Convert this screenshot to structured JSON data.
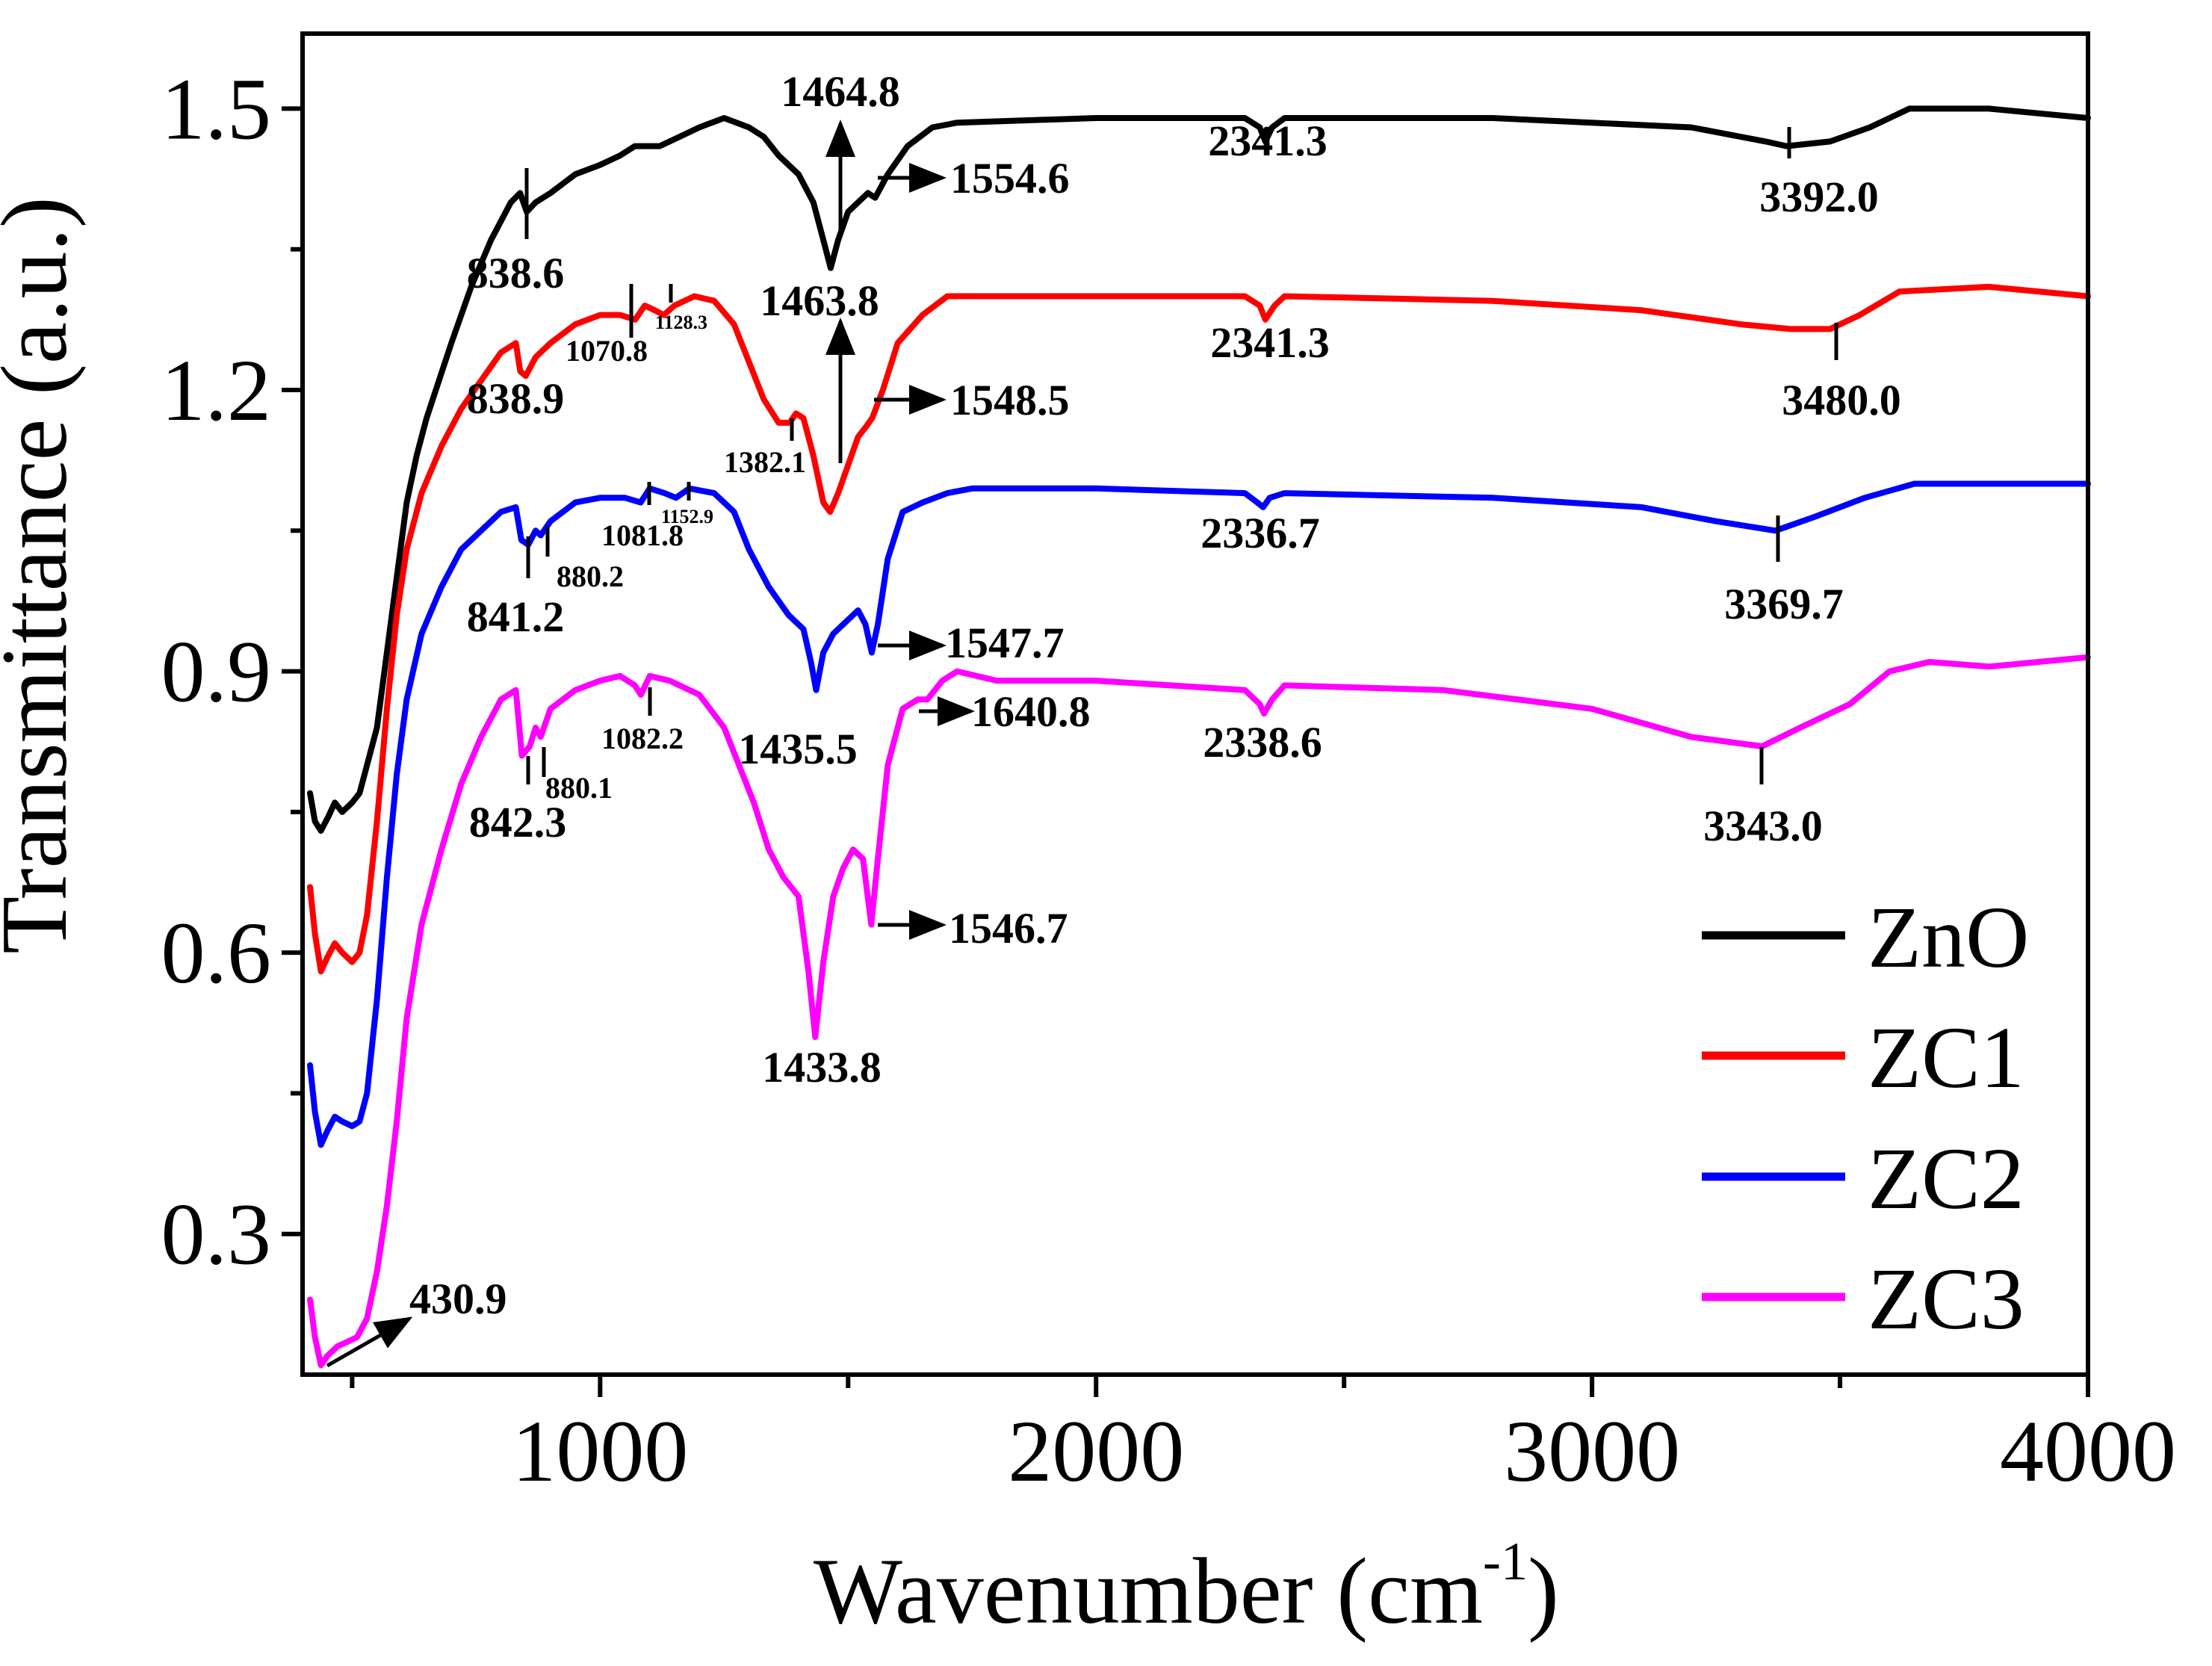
{
  "chart_data": {
    "type": "line",
    "title": "",
    "xlabel_main": "Wavenumber (cm",
    "xlabel_sup": "-1",
    "xlabel_close": ")",
    "ylabel": "Transmittance (a.u.)",
    "xlim": [
      400,
      4000
    ],
    "ylim": [
      0.15,
      1.58
    ],
    "xticks": [
      1000,
      2000,
      3000,
      4000
    ],
    "xtick_labels": [
      "1000",
      "2000",
      "3000",
      "4000"
    ],
    "yticks": [
      0.3,
      0.6,
      0.9,
      1.2,
      1.5
    ],
    "ytick_labels": [
      "0.3",
      "0.6",
      "0.9",
      "1.2",
      "1.5"
    ],
    "legend_position": "bottom-right",
    "series": [
      {
        "name": "ZnO",
        "color": "#000000",
        "points": [
          [
            415,
            0.77
          ],
          [
            425,
            0.74
          ],
          [
            437,
            0.73
          ],
          [
            452,
            0.745
          ],
          [
            465,
            0.76
          ],
          [
            480,
            0.75
          ],
          [
            500,
            0.76
          ],
          [
            515,
            0.77
          ],
          [
            530,
            0.8
          ],
          [
            550,
            0.84
          ],
          [
            570,
            0.92
          ],
          [
            590,
            1.0
          ],
          [
            610,
            1.08
          ],
          [
            630,
            1.13
          ],
          [
            650,
            1.17
          ],
          [
            675,
            1.21
          ],
          [
            700,
            1.25
          ],
          [
            740,
            1.31
          ],
          [
            780,
            1.36
          ],
          [
            820,
            1.4
          ],
          [
            838.6,
            1.41
          ],
          [
            852,
            1.39
          ],
          [
            870,
            1.4
          ],
          [
            900,
            1.41
          ],
          [
            950,
            1.43
          ],
          [
            1000,
            1.44
          ],
          [
            1040,
            1.45
          ],
          [
            1070,
            1.46
          ],
          [
            1120,
            1.46
          ],
          [
            1160,
            1.47
          ],
          [
            1200,
            1.48
          ],
          [
            1250,
            1.49
          ],
          [
            1300,
            1.48
          ],
          [
            1330,
            1.47
          ],
          [
            1360,
            1.45
          ],
          [
            1400,
            1.43
          ],
          [
            1430,
            1.4
          ],
          [
            1450,
            1.36
          ],
          [
            1464.8,
            1.33
          ],
          [
            1480,
            1.36
          ],
          [
            1500,
            1.39
          ],
          [
            1520,
            1.4
          ],
          [
            1540,
            1.41
          ],
          [
            1554.6,
            1.405
          ],
          [
            1580,
            1.43
          ],
          [
            1620,
            1.46
          ],
          [
            1670,
            1.48
          ],
          [
            1720,
            1.485
          ],
          [
            2000,
            1.49
          ],
          [
            2300,
            1.49
          ],
          [
            2330,
            1.48
          ],
          [
            2341.3,
            1.465
          ],
          [
            2355,
            1.48
          ],
          [
            2380,
            1.49
          ],
          [
            2800,
            1.49
          ],
          [
            3200,
            1.48
          ],
          [
            3350,
            1.465
          ],
          [
            3392,
            1.46
          ],
          [
            3480,
            1.465
          ],
          [
            3560,
            1.48
          ],
          [
            3640,
            1.5
          ],
          [
            3800,
            1.5
          ],
          [
            4000,
            1.49
          ]
        ]
      },
      {
        "name": "ZC1",
        "color": "#ff0000",
        "points": [
          [
            415,
            0.67
          ],
          [
            425,
            0.62
          ],
          [
            437,
            0.58
          ],
          [
            450,
            0.595
          ],
          [
            465,
            0.61
          ],
          [
            480,
            0.6
          ],
          [
            500,
            0.59
          ],
          [
            515,
            0.6
          ],
          [
            530,
            0.64
          ],
          [
            550,
            0.74
          ],
          [
            570,
            0.86
          ],
          [
            590,
            0.96
          ],
          [
            610,
            1.03
          ],
          [
            640,
            1.09
          ],
          [
            680,
            1.14
          ],
          [
            720,
            1.18
          ],
          [
            760,
            1.21
          ],
          [
            800,
            1.24
          ],
          [
            830,
            1.25
          ],
          [
            838.9,
            1.22
          ],
          [
            850,
            1.215
          ],
          [
            870,
            1.235
          ],
          [
            900,
            1.25
          ],
          [
            950,
            1.27
          ],
          [
            1000,
            1.28
          ],
          [
            1040,
            1.28
          ],
          [
            1070.8,
            1.275
          ],
          [
            1090,
            1.29
          ],
          [
            1110,
            1.285
          ],
          [
            1128.3,
            1.28
          ],
          [
            1150,
            1.29
          ],
          [
            1190,
            1.3
          ],
          [
            1230,
            1.295
          ],
          [
            1270,
            1.27
          ],
          [
            1300,
            1.23
          ],
          [
            1330,
            1.19
          ],
          [
            1360,
            1.165
          ],
          [
            1382.1,
            1.165
          ],
          [
            1395,
            1.175
          ],
          [
            1410,
            1.17
          ],
          [
            1430,
            1.13
          ],
          [
            1450,
            1.08
          ],
          [
            1463.8,
            1.07
          ],
          [
            1480,
            1.09
          ],
          [
            1500,
            1.12
          ],
          [
            1520,
            1.15
          ],
          [
            1535,
            1.16
          ],
          [
            1548.5,
            1.17
          ],
          [
            1570,
            1.2
          ],
          [
            1600,
            1.25
          ],
          [
            1650,
            1.28
          ],
          [
            1700,
            1.3
          ],
          [
            2000,
            1.3
          ],
          [
            2300,
            1.3
          ],
          [
            2330,
            1.29
          ],
          [
            2341.3,
            1.275
          ],
          [
            2360,
            1.29
          ],
          [
            2380,
            1.3
          ],
          [
            2800,
            1.295
          ],
          [
            3100,
            1.285
          ],
          [
            3300,
            1.27
          ],
          [
            3400,
            1.265
          ],
          [
            3480,
            1.265
          ],
          [
            3540,
            1.28
          ],
          [
            3620,
            1.305
          ],
          [
            3800,
            1.31
          ],
          [
            4000,
            1.3
          ]
        ]
      },
      {
        "name": "ZC2",
        "color": "#0000ff",
        "points": [
          [
            415,
            0.48
          ],
          [
            425,
            0.43
          ],
          [
            437,
            0.395
          ],
          [
            450,
            0.41
          ],
          [
            465,
            0.425
          ],
          [
            480,
            0.42
          ],
          [
            500,
            0.415
          ],
          [
            515,
            0.42
          ],
          [
            530,
            0.45
          ],
          [
            550,
            0.55
          ],
          [
            570,
            0.68
          ],
          [
            590,
            0.79
          ],
          [
            610,
            0.87
          ],
          [
            640,
            0.94
          ],
          [
            680,
            0.99
          ],
          [
            720,
            1.03
          ],
          [
            760,
            1.05
          ],
          [
            800,
            1.07
          ],
          [
            830,
            1.075
          ],
          [
            841.2,
            1.04
          ],
          [
            855,
            1.035
          ],
          [
            870,
            1.05
          ],
          [
            880.2,
            1.045
          ],
          [
            900,
            1.06
          ],
          [
            950,
            1.08
          ],
          [
            1000,
            1.085
          ],
          [
            1050,
            1.085
          ],
          [
            1081.8,
            1.08
          ],
          [
            1100,
            1.095
          ],
          [
            1130,
            1.09
          ],
          [
            1152.9,
            1.085
          ],
          [
            1180,
            1.095
          ],
          [
            1230,
            1.09
          ],
          [
            1270,
            1.07
          ],
          [
            1300,
            1.03
          ],
          [
            1340,
            0.99
          ],
          [
            1380,
            0.96
          ],
          [
            1410,
            0.945
          ],
          [
            1425,
            0.91
          ],
          [
            1435.5,
            0.88
          ],
          [
            1450,
            0.92
          ],
          [
            1470,
            0.94
          ],
          [
            1500,
            0.955
          ],
          [
            1520,
            0.965
          ],
          [
            1535,
            0.95
          ],
          [
            1547.7,
            0.92
          ],
          [
            1560,
            0.95
          ],
          [
            1580,
            1.02
          ],
          [
            1610,
            1.07
          ],
          [
            1650,
            1.08
          ],
          [
            1700,
            1.09
          ],
          [
            1750,
            1.095
          ],
          [
            2000,
            1.095
          ],
          [
            2300,
            1.09
          ],
          [
            2325,
            1.08
          ],
          [
            2336.7,
            1.075
          ],
          [
            2350,
            1.085
          ],
          [
            2380,
            1.09
          ],
          [
            2800,
            1.085
          ],
          [
            3100,
            1.075
          ],
          [
            3250,
            1.06
          ],
          [
            3369.7,
            1.05
          ],
          [
            3450,
            1.065
          ],
          [
            3550,
            1.085
          ],
          [
            3650,
            1.1
          ],
          [
            3800,
            1.1
          ],
          [
            4000,
            1.1
          ]
        ]
      },
      {
        "name": "ZC3",
        "color": "#ff00ff",
        "points": [
          [
            415,
            0.23
          ],
          [
            425,
            0.19
          ],
          [
            437,
            0.16
          ],
          [
            450,
            0.17
          ],
          [
            470,
            0.18
          ],
          [
            490,
            0.185
          ],
          [
            510,
            0.19
          ],
          [
            530,
            0.21
          ],
          [
            550,
            0.26
          ],
          [
            570,
            0.33
          ],
          [
            590,
            0.42
          ],
          [
            610,
            0.53
          ],
          [
            640,
            0.63
          ],
          [
            680,
            0.71
          ],
          [
            720,
            0.78
          ],
          [
            760,
            0.83
          ],
          [
            800,
            0.87
          ],
          [
            830,
            0.88
          ],
          [
            842.3,
            0.81
          ],
          [
            858,
            0.82
          ],
          [
            870,
            0.84
          ],
          [
            880.1,
            0.83
          ],
          [
            900,
            0.86
          ],
          [
            950,
            0.88
          ],
          [
            1000,
            0.89
          ],
          [
            1040,
            0.895
          ],
          [
            1070,
            0.885
          ],
          [
            1082.2,
            0.875
          ],
          [
            1100,
            0.895
          ],
          [
            1140,
            0.89
          ],
          [
            1200,
            0.875
          ],
          [
            1250,
            0.84
          ],
          [
            1280,
            0.8
          ],
          [
            1310,
            0.76
          ],
          [
            1340,
            0.71
          ],
          [
            1370,
            0.68
          ],
          [
            1400,
            0.66
          ],
          [
            1420,
            0.58
          ],
          [
            1433.8,
            0.51
          ],
          [
            1450,
            0.59
          ],
          [
            1470,
            0.66
          ],
          [
            1490,
            0.69
          ],
          [
            1510,
            0.71
          ],
          [
            1530,
            0.7
          ],
          [
            1546.7,
            0.63
          ],
          [
            1560,
            0.7
          ],
          [
            1580,
            0.8
          ],
          [
            1610,
            0.86
          ],
          [
            1640.8,
            0.87
          ],
          [
            1660,
            0.87
          ],
          [
            1690,
            0.89
          ],
          [
            1720,
            0.9
          ],
          [
            1800,
            0.89
          ],
          [
            2000,
            0.89
          ],
          [
            2300,
            0.88
          ],
          [
            2330,
            0.865
          ],
          [
            2338.6,
            0.855
          ],
          [
            2355,
            0.87
          ],
          [
            2380,
            0.885
          ],
          [
            2700,
            0.88
          ],
          [
            3000,
            0.86
          ],
          [
            3200,
            0.83
          ],
          [
            3343,
            0.82
          ],
          [
            3420,
            0.84
          ],
          [
            3520,
            0.865
          ],
          [
            3600,
            0.9
          ],
          [
            3680,
            0.91
          ],
          [
            3800,
            0.905
          ],
          [
            4000,
            0.915
          ]
        ]
      }
    ],
    "annotations": [
      {
        "label": "1464.8",
        "series": "ZnO"
      },
      {
        "label": "1554.6",
        "series": "ZnO"
      },
      {
        "label": "2341.3",
        "series": "ZnO"
      },
      {
        "label": "838.6",
        "series": "ZnO"
      },
      {
        "label": "3392.0",
        "series": "ZnO"
      },
      {
        "label": "1463.8",
        "series": "ZC1"
      },
      {
        "label": "838.9",
        "series": "ZC1"
      },
      {
        "label": "1070.8",
        "series": "ZC1"
      },
      {
        "label": "1128.3",
        "series": "ZC1"
      },
      {
        "label": "2341.3",
        "series": "ZC1"
      },
      {
        "label": "1548.5",
        "series": "ZC1"
      },
      {
        "label": "1382.1",
        "series": "ZC1"
      },
      {
        "label": "3480.0",
        "series": "ZC1"
      },
      {
        "label": "1081.8",
        "series": "ZC2"
      },
      {
        "label": "1152.9",
        "series": "ZC2"
      },
      {
        "label": "880.2",
        "series": "ZC2"
      },
      {
        "label": "841.2",
        "series": "ZC2"
      },
      {
        "label": "2336.7",
        "series": "ZC2"
      },
      {
        "label": "3369.7",
        "series": "ZC2"
      },
      {
        "label": "1547.7",
        "series": "ZC2"
      },
      {
        "label": "1435.5",
        "series": "ZC2"
      },
      {
        "label": "1082.2",
        "series": "ZC3"
      },
      {
        "label": "880.1",
        "series": "ZC3"
      },
      {
        "label": "842.3",
        "series": "ZC3"
      },
      {
        "label": "1640.8",
        "series": "ZC3"
      },
      {
        "label": "2338.6",
        "series": "ZC3"
      },
      {
        "label": "3343.0",
        "series": "ZC3"
      },
      {
        "label": "1546.7",
        "series": "ZC3"
      },
      {
        "label": "1433.8",
        "series": "ZC3"
      },
      {
        "label": "430.9",
        "series": "ZC3"
      }
    ]
  }
}
